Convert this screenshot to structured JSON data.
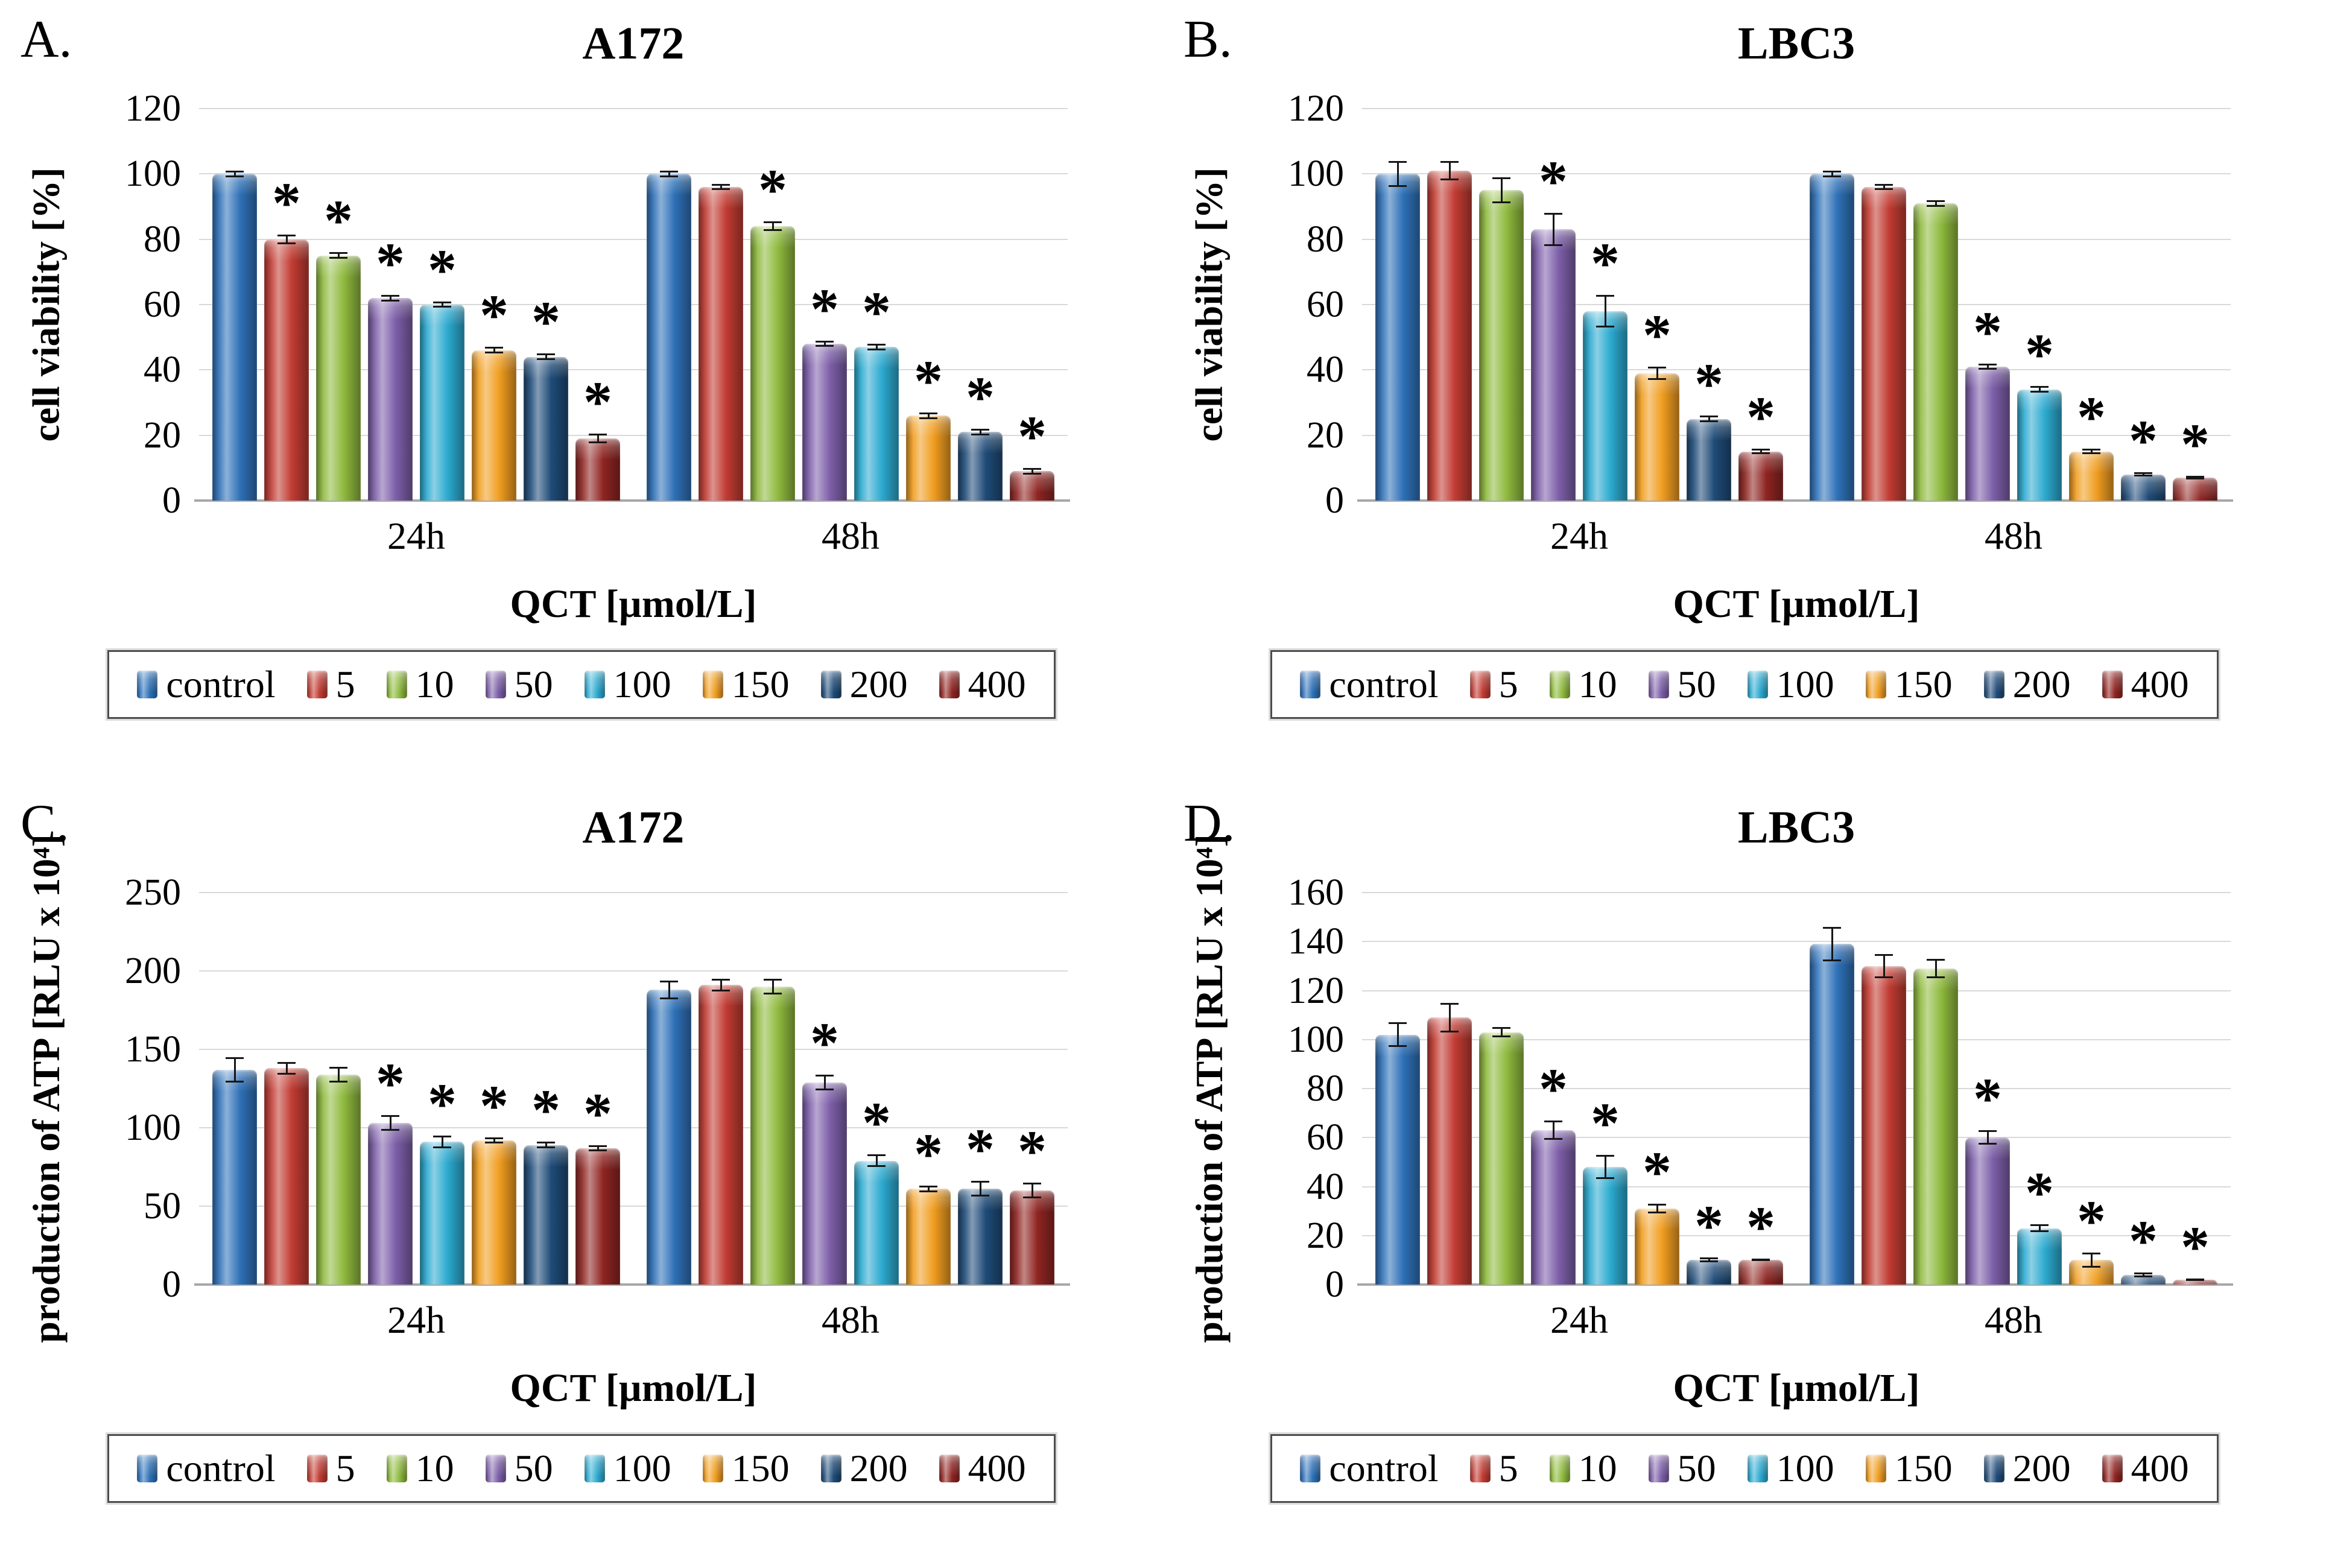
{
  "chart_data": [
    {
      "type": "bar",
      "panel_letter": "A.",
      "title": "A172",
      "ylabel": "cell viability [%]",
      "xlabel": "QCT [µmol/L]",
      "ylim": [
        0,
        120
      ],
      "ystep": 20,
      "grid": true,
      "legend_position": "bottom",
      "categories": [
        "24h",
        "48h"
      ],
      "series": [
        {
          "name": "control",
          "color": "#2E71B8",
          "values": [
            100,
            100
          ],
          "errors": [
            1,
            1
          ],
          "significant": [
            false,
            false
          ]
        },
        {
          "name": "5",
          "color": "#C13B32",
          "values": [
            80,
            96
          ],
          "errors": [
            1.5,
            1
          ],
          "significant": [
            true,
            false
          ]
        },
        {
          "name": "10",
          "color": "#8FBA3E",
          "values": [
            75,
            84
          ],
          "errors": [
            1,
            1.5
          ],
          "significant": [
            true,
            true
          ]
        },
        {
          "name": "50",
          "color": "#7D5FA9",
          "values": [
            62,
            48
          ],
          "errors": [
            1,
            1
          ],
          "significant": [
            true,
            true
          ]
        },
        {
          "name": "100",
          "color": "#2CAAD0",
          "values": [
            60,
            47
          ],
          "errors": [
            1,
            1
          ],
          "significant": [
            true,
            true
          ]
        },
        {
          "name": "150",
          "color": "#F09D20",
          "values": [
            46,
            26
          ],
          "errors": [
            1,
            1
          ],
          "significant": [
            true,
            true
          ]
        },
        {
          "name": "200",
          "color": "#1F4B78",
          "values": [
            44,
            21
          ],
          "errors": [
            1,
            1
          ],
          "significant": [
            true,
            true
          ]
        },
        {
          "name": "400",
          "color": "#8F2522",
          "values": [
            19,
            9
          ],
          "errors": [
            1.5,
            1
          ],
          "significant": [
            true,
            true
          ]
        }
      ]
    },
    {
      "type": "bar",
      "panel_letter": "B.",
      "title": "LBC3",
      "ylabel": "cell viability [%]",
      "xlabel": "QCT [µmol/L]",
      "ylim": [
        0,
        120
      ],
      "ystep": 20,
      "grid": true,
      "legend_position": "bottom",
      "categories": [
        "24h",
        "48h"
      ],
      "series": [
        {
          "name": "control",
          "color": "#2E71B8",
          "values": [
            100,
            100
          ],
          "errors": [
            4,
            1
          ],
          "significant": [
            false,
            false
          ]
        },
        {
          "name": "5",
          "color": "#C13B32",
          "values": [
            101,
            96
          ],
          "errors": [
            3,
            1
          ],
          "significant": [
            false,
            false
          ]
        },
        {
          "name": "10",
          "color": "#8FBA3E",
          "values": [
            95,
            91
          ],
          "errors": [
            4,
            1
          ],
          "significant": [
            false,
            false
          ]
        },
        {
          "name": "50",
          "color": "#7D5FA9",
          "values": [
            83,
            41
          ],
          "errors": [
            5,
            1
          ],
          "significant": [
            true,
            true
          ]
        },
        {
          "name": "100",
          "color": "#2CAAD0",
          "values": [
            58,
            34
          ],
          "errors": [
            5,
            1
          ],
          "significant": [
            true,
            true
          ]
        },
        {
          "name": "150",
          "color": "#F09D20",
          "values": [
            39,
            15
          ],
          "errors": [
            2,
            0.8
          ],
          "significant": [
            true,
            true
          ]
        },
        {
          "name": "200",
          "color": "#1F4B78",
          "values": [
            25,
            8
          ],
          "errors": [
            1,
            0.6
          ],
          "significant": [
            true,
            true
          ]
        },
        {
          "name": "400",
          "color": "#8F2522",
          "values": [
            15,
            7
          ],
          "errors": [
            0.8,
            0.5
          ],
          "significant": [
            true,
            true
          ]
        }
      ]
    },
    {
      "type": "bar",
      "panel_letter": "C.",
      "title": "A172",
      "ylabel": "production of ATP [RLU x 10⁴]",
      "xlabel": "QCT [µmol/L]",
      "ylim": [
        0,
        250
      ],
      "ystep": 50,
      "grid": true,
      "legend_position": "bottom",
      "categories": [
        "24h",
        "48h"
      ],
      "series": [
        {
          "name": "control",
          "color": "#2E71B8",
          "values": [
            137,
            188
          ],
          "errors": [
            8,
            6
          ],
          "significant": [
            false,
            false
          ]
        },
        {
          "name": "5",
          "color": "#C13B32",
          "values": [
            138,
            191
          ],
          "errors": [
            4,
            4
          ],
          "significant": [
            false,
            false
          ]
        },
        {
          "name": "10",
          "color": "#8FBA3E",
          "values": [
            134,
            190
          ],
          "errors": [
            5,
            5
          ],
          "significant": [
            false,
            false
          ]
        },
        {
          "name": "50",
          "color": "#7D5FA9",
          "values": [
            103,
            129
          ],
          "errors": [
            5,
            5
          ],
          "significant": [
            true,
            true
          ]
        },
        {
          "name": "100",
          "color": "#2CAAD0",
          "values": [
            91,
            79
          ],
          "errors": [
            4,
            4
          ],
          "significant": [
            true,
            true
          ]
        },
        {
          "name": "150",
          "color": "#F09D20",
          "values": [
            92,
            61
          ],
          "errors": [
            2,
            2
          ],
          "significant": [
            true,
            true
          ]
        },
        {
          "name": "200",
          "color": "#1F4B78",
          "values": [
            89,
            61
          ],
          "errors": [
            2,
            5
          ],
          "significant": [
            true,
            true
          ]
        },
        {
          "name": "400",
          "color": "#8F2522",
          "values": [
            87,
            60
          ],
          "errors": [
            2,
            5
          ],
          "significant": [
            true,
            true
          ]
        }
      ]
    },
    {
      "type": "bar",
      "panel_letter": "D.",
      "title": "LBC3",
      "ylabel": "production of ATP [RLU x 10⁴]",
      "xlabel": "QCT [µmol/L]",
      "ylim": [
        0,
        160
      ],
      "ystep": 20,
      "grid": true,
      "legend_position": "bottom",
      "categories": [
        "24h",
        "48h"
      ],
      "series": [
        {
          "name": "control",
          "color": "#2E71B8",
          "values": [
            102,
            139
          ],
          "errors": [
            5,
            7
          ],
          "significant": [
            false,
            false
          ]
        },
        {
          "name": "5",
          "color": "#C13B32",
          "values": [
            109,
            130
          ],
          "errors": [
            6,
            5
          ],
          "significant": [
            false,
            false
          ]
        },
        {
          "name": "10",
          "color": "#8FBA3E",
          "values": [
            103,
            129
          ],
          "errors": [
            2,
            4
          ],
          "significant": [
            false,
            false
          ]
        },
        {
          "name": "50",
          "color": "#7D5FA9",
          "values": [
            63,
            60
          ],
          "errors": [
            4,
            3
          ],
          "significant": [
            true,
            true
          ]
        },
        {
          "name": "100",
          "color": "#2CAAD0",
          "values": [
            48,
            23
          ],
          "errors": [
            5,
            1.5
          ],
          "significant": [
            true,
            true
          ]
        },
        {
          "name": "150",
          "color": "#F09D20",
          "values": [
            31,
            10
          ],
          "errors": [
            2,
            3
          ],
          "significant": [
            true,
            true
          ]
        },
        {
          "name": "200",
          "color": "#1F4B78",
          "values": [
            10,
            4
          ],
          "errors": [
            1,
            1
          ],
          "significant": [
            true,
            true
          ]
        },
        {
          "name": "400",
          "color": "#8F2522",
          "values": [
            10,
            2
          ],
          "errors": [
            0.5,
            0.5
          ],
          "significant": [
            true,
            true
          ]
        }
      ]
    }
  ]
}
